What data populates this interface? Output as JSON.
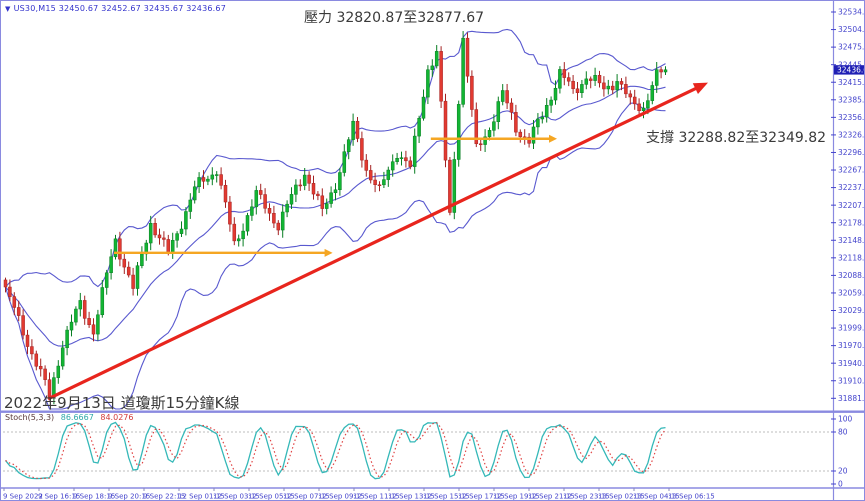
{
  "window": {
    "app": "MetaTrader chart",
    "frame_color": "#8A8AE0",
    "background": "#FFFFFF"
  },
  "header": {
    "dropdown_icon": "▼",
    "symbol_info": "US30,M15",
    "quotes": "32450.67 32452.67 32435.67 32436.67",
    "text_color": "#3333CC"
  },
  "annotations": {
    "resistance_text": "壓力 32820.87至32877.67",
    "support_text": "支撐 32288.82至32349.82",
    "date_note": "2022年9月13日 道瓊斯15分鐘K線"
  },
  "indicator_label": {
    "name": "Stoch(5,3,3)",
    "k_value": "86.6667",
    "d_value": "84.0276",
    "k_color": "#2FA8A8",
    "d_color": "#D23B3B"
  },
  "axes": {
    "label_color": "#4444CC",
    "price_labels": [
      "32534.40",
      "32504.70",
      "32475.00",
      "32445.30",
      "32415.60",
      "32385.90",
      "32356.20",
      "32326.50",
      "32296.80",
      "32267.10",
      "32237.40",
      "32207.70",
      "32178.00",
      "32148.30",
      "32118.60",
      "32088.90",
      "32059.20",
      "32029.50",
      "31999.80",
      "31970.10",
      "31940.40",
      "31910.70",
      "31881.00"
    ],
    "current_price_tag": "32436.67",
    "current_tag_bg": "#1F1FB4",
    "time_labels": [
      "9 Sep 2022",
      "9 Sep 16:15",
      "9 Sep 18:15",
      "9 Sep 20:15",
      "9 Sep 22:15",
      "12 Sep 01:15",
      "12 Sep 03:15",
      "12 Sep 05:15",
      "12 Sep 07:15",
      "12 Sep 09:15",
      "12 Sep 11:15",
      "12 Sep 13:15",
      "12 Sep 15:15",
      "12 Sep 17:15",
      "12 Sep 19:15",
      "12 Sep 21:15",
      "12 Sep 23:15",
      "13 Sep 02:15",
      "13 Sep 04:15",
      "13 Sep 06:15"
    ],
    "stoch_labels": [
      "100",
      "80",
      "20",
      "0"
    ]
  },
  "chart_data": {
    "type": "candlestick",
    "symbol": "US30",
    "timeframe": "M15",
    "title": "2022年9月13日 道瓊斯15分鐘K線",
    "ohlc_current": {
      "open": 32450.67,
      "high": 32452.67,
      "low": 32435.67,
      "close": 32436.67
    },
    "price_axis": {
      "max": 32534.4,
      "min": 31881.0,
      "step": 29.7
    },
    "resistance_zone": [
      32820.87,
      32877.67
    ],
    "support_zone": [
      32288.82,
      32349.82
    ],
    "grid": "off",
    "candle_up_color": "#12B533",
    "candle_down_color": "#E13A31",
    "price_path": [
      [
        0,
        32065
      ],
      [
        4,
        31995
      ],
      [
        10,
        31885
      ],
      [
        13,
        31975
      ],
      [
        17,
        32040
      ],
      [
        20,
        31995
      ],
      [
        25,
        32150
      ],
      [
        29,
        32065
      ],
      [
        33,
        32180
      ],
      [
        37,
        32125
      ],
      [
        43,
        32235
      ],
      [
        48,
        32270
      ],
      [
        52,
        32140
      ],
      [
        57,
        32225
      ],
      [
        62,
        32175
      ],
      [
        68,
        32265
      ],
      [
        72,
        32195
      ],
      [
        75,
        32245
      ],
      [
        79,
        32340
      ],
      [
        82,
        32270
      ],
      [
        85,
        32230
      ],
      [
        89,
        32300
      ],
      [
        92,
        32270
      ],
      [
        96,
        32440
      ],
      [
        98,
        32465
      ],
      [
        101,
        32190
      ],
      [
        104,
        32490
      ],
      [
        107,
        32300
      ],
      [
        110,
        32340
      ],
      [
        113,
        32395
      ],
      [
        116,
        32340
      ],
      [
        119,
        32315
      ],
      [
        122,
        32360
      ],
      [
        126,
        32430
      ],
      [
        129,
        32400
      ],
      [
        132,
        32425
      ],
      [
        136,
        32405
      ],
      [
        139,
        32420
      ],
      [
        142,
        32380
      ],
      [
        145,
        32375
      ],
      [
        148,
        32425
      ],
      [
        150,
        32437
      ]
    ],
    "overlays": {
      "bollinger": {
        "period": 20,
        "deviation": 2,
        "color": "#5959CF"
      },
      "trendline": {
        "from_bar": 10,
        "from_price": 31880,
        "to_bar": 160,
        "to_price": 32415,
        "color": "#E8251D"
      },
      "support_segments": [
        {
          "price": 32127,
          "from_bar": 25,
          "to_bar": 74,
          "color": "#F5A623"
        },
        {
          "price": 32320,
          "from_bar": 97,
          "to_bar": 125,
          "color": "#F5A623"
        }
      ]
    },
    "indicator": {
      "type": "stochastic",
      "k_period": 5,
      "d_period": 3,
      "slowing": 3,
      "k_current": 86.6667,
      "d_current": 84.0276,
      "levels": [
        80,
        20
      ],
      "k_color": "#35B8B8",
      "d_color": "#E04444"
    }
  }
}
